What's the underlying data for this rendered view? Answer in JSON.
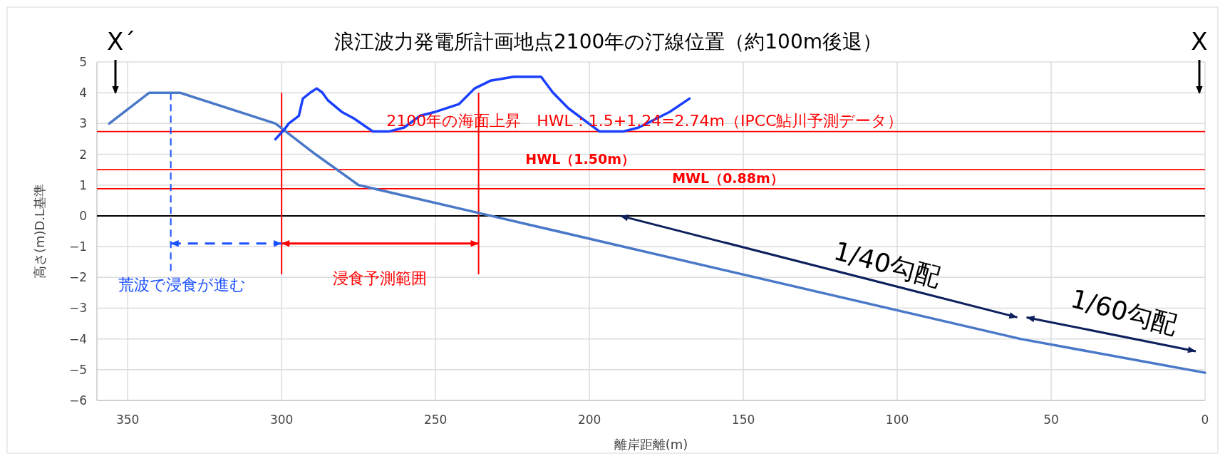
{
  "chart_data": {
    "type": "line",
    "title": "浪江波力発電所計画地点2100年の汀線位置（約100m後退）",
    "xlabel": "離岸距離(m)",
    "ylabel": "高さ(m)D.L基準",
    "x": [
      356,
      343,
      333,
      302,
      289,
      275,
      232,
      60,
      0
    ],
    "series": [
      {
        "color": "#4a78c8",
        "values": [
          3,
          4,
          4,
          3,
          2,
          1,
          0,
          -4,
          -5.1
        ]
      },
      {
        "color": "#1a3fff",
        "x": [
          302,
          299,
          297.7,
          294.4,
          293.1,
          290.6,
          288.6,
          286.8,
          285,
          280.5,
          276.6,
          270.3,
          265.2,
          260.2,
          255.1,
          250,
          242.4,
          237.3,
          232.2,
          224.6,
          215.7,
          211.9,
          206.9,
          196.7,
          189.1,
          184,
          173.9,
          167.5
        ],
        "values": [
          2.49,
          2.82,
          3,
          3.25,
          3.81,
          4.01,
          4.14,
          4.01,
          3.76,
          3.38,
          3.17,
          2.74,
          2.74,
          2.87,
          3.25,
          3.38,
          3.63,
          4.14,
          4.39,
          4.52,
          4.52,
          4.01,
          3.5,
          2.74,
          2.74,
          2.87,
          3.38,
          3.81
        ]
      }
    ],
    "xlim": [
      360,
      0
    ],
    "xticks": [
      350,
      300,
      250,
      200,
      150,
      100,
      50,
      0
    ],
    "ylim": [
      -6,
      5
    ],
    "yticks": [
      -6,
      -5,
      -4,
      -3,
      -2,
      -1,
      0,
      1,
      2,
      3,
      4,
      5
    ],
    "grid": true,
    "marker": "none",
    "line_style": "solid",
    "ref_lines": [
      {
        "axis": "y",
        "value": 2.74,
        "color": "#ff0000"
      },
      {
        "axis": "y",
        "value": 1.5,
        "color": "#ff0000"
      },
      {
        "axis": "y",
        "value": 0.88,
        "color": "#ff0000"
      },
      {
        "axis": "y",
        "value": 0,
        "color": "#000000"
      },
      {
        "axis": "x",
        "value": 336,
        "color": "#1a4fff",
        "line_style": "dashed"
      },
      {
        "axis": "x",
        "value": 300,
        "color": "#ff0000"
      },
      {
        "axis": "x",
        "value": 236,
        "color": "#ff0000"
      }
    ],
    "annotations": [
      {
        "text": "2100年の海面上昇　HWL：1.5+1.24=2.74m（IPCC鮎川予測データ）",
        "x": 182,
        "y": 2.74
      },
      {
        "text": "HWL（1.50m）",
        "x": 203,
        "y": 1.5
      },
      {
        "text": "MWL（0.88m）",
        "x": 155,
        "y": 0.88
      },
      "荒波で浸食が進む",
      "浸食予測範囲",
      "1/40勾配",
      "1/60勾配",
      "X´",
      "X"
    ]
  }
}
